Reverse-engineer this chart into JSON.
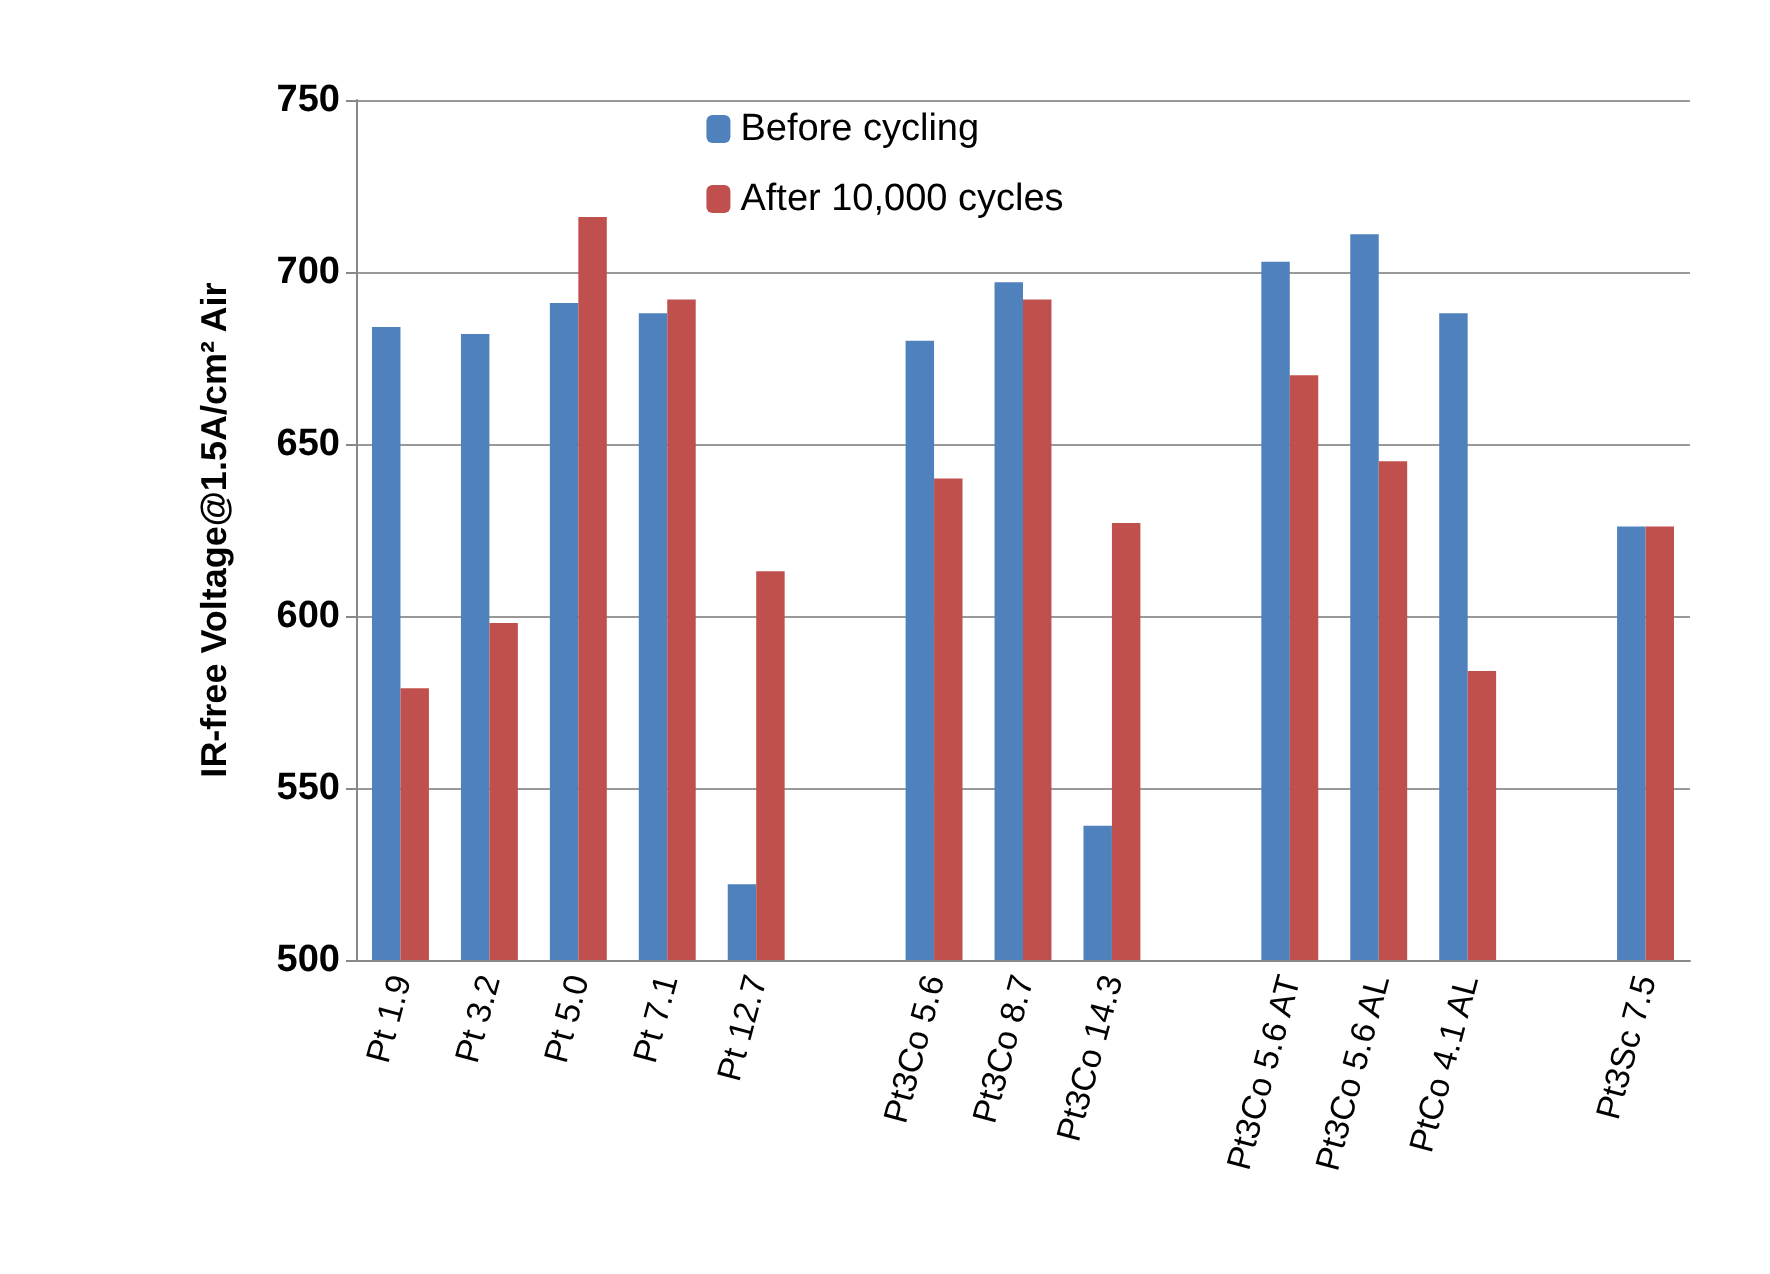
{
  "chart_data": {
    "type": "bar",
    "ylabel": "IR-free Voltage@1.5A/cm² Air",
    "categories": [
      "Pt 1.9",
      "Pt 3.2",
      "Pt 5.0",
      "Pt 7.1",
      "Pt 12.7",
      null,
      "Pt3Co 5.6",
      "Pt3Co 8.7",
      "Pt3Co 14.3",
      null,
      "Pt3Co 5.6 AT",
      "Pt3Co 5.6 AL",
      "PtCo 4.1 AL",
      null,
      "Pt3Sc 7.5"
    ],
    "series": [
      {
        "name": "Before cycling",
        "color": "#4f81bd",
        "values": [
          684,
          682,
          691,
          688,
          522,
          null,
          680,
          697,
          539,
          null,
          703,
          711,
          688,
          null,
          626
        ]
      },
      {
        "name": "After 10,000 cycles",
        "color": "#c0504d",
        "values": [
          579,
          598,
          716,
          692,
          613,
          null,
          640,
          692,
          627,
          null,
          670,
          645,
          584,
          null,
          626
        ]
      }
    ],
    "ylim": [
      500,
      750
    ],
    "yticks": [
      500,
      550,
      600,
      650,
      700,
      750
    ],
    "grid": "y",
    "legend": "top"
  }
}
